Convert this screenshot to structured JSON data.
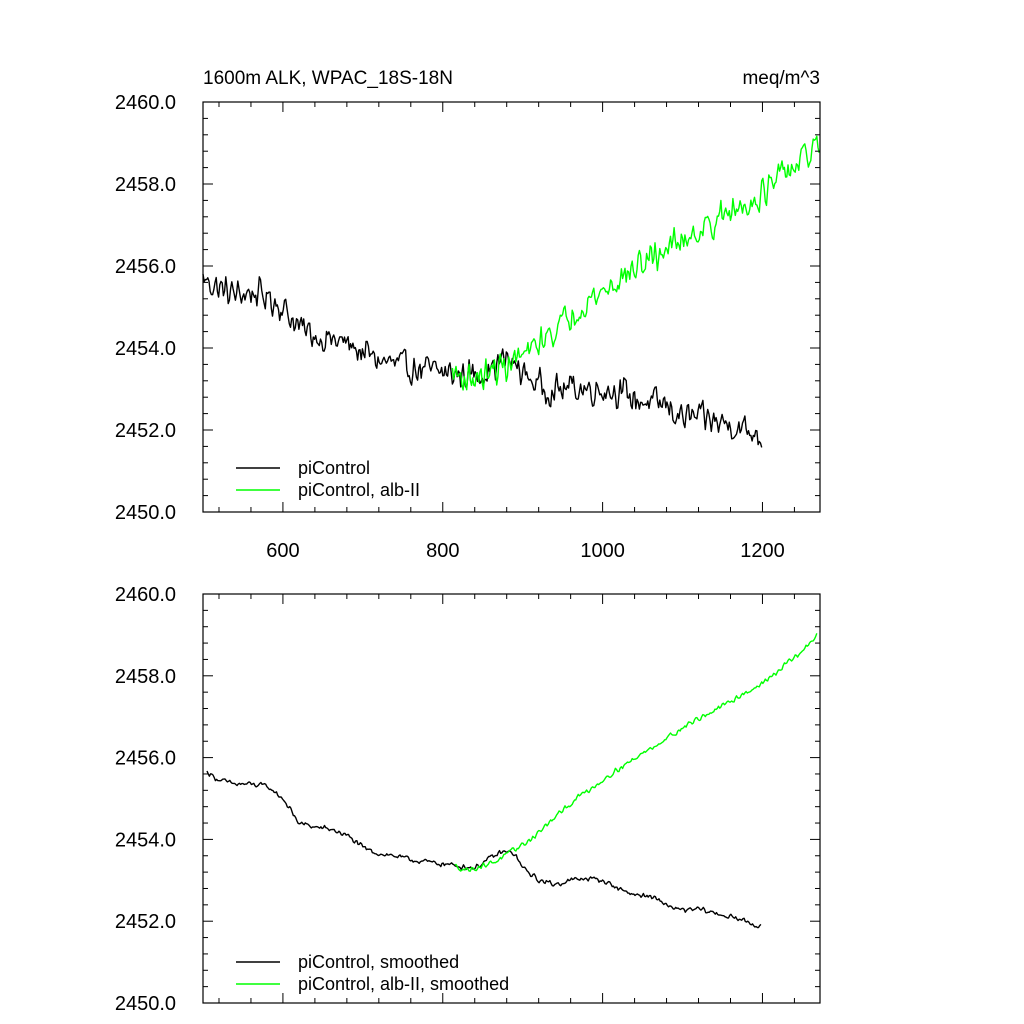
{
  "chart_data": [
    {
      "type": "line",
      "title": "1600m ALK, WPAC_18S-18N",
      "units": "meq/m^3",
      "xlim": [
        500,
        1272
      ],
      "ylim": [
        2450,
        2460
      ],
      "x_ticks": [
        600,
        800,
        1000,
        1200
      ],
      "x_tick_labels": [
        "600",
        "800",
        "1000",
        "1200"
      ],
      "y_ticks": [
        2450,
        2452,
        2454,
        2456,
        2458,
        2460
      ],
      "y_tick_labels": [
        "2450.0",
        "2452.0",
        "2454.0",
        "2456.0",
        "2458.0",
        "2460.0"
      ],
      "grid": false,
      "legend_position": "bottom-left",
      "series": [
        {
          "name": "piControl",
          "color": "#000000",
          "noise": 0.45,
          "x": [
            500,
            520,
            540,
            560,
            580,
            600,
            620,
            640,
            660,
            680,
            700,
            720,
            740,
            760,
            780,
            800,
            820,
            840,
            860,
            880,
            900,
            920,
            940,
            960,
            980,
            1000,
            1020,
            1040,
            1060,
            1080,
            1100,
            1120,
            1140,
            1160,
            1180,
            1200
          ],
          "y": [
            2455.7,
            2455.45,
            2455.3,
            2455.35,
            2455.25,
            2455.0,
            2454.5,
            2454.3,
            2454.2,
            2454.1,
            2453.9,
            2453.7,
            2453.6,
            2453.5,
            2453.45,
            2453.4,
            2453.35,
            2453.35,
            2453.5,
            2453.75,
            2453.4,
            2453.1,
            2452.95,
            2453.05,
            2453.0,
            2453.0,
            2452.95,
            2452.75,
            2452.65,
            2452.6,
            2452.3,
            2452.3,
            2452.2,
            2452.15,
            2452.0,
            2451.85
          ]
        },
        {
          "name": "piControl, alb-II",
          "color": "#00ff00",
          "noise": 0.45,
          "x": [
            812,
            830,
            850,
            870,
            890,
            910,
            930,
            950,
            970,
            990,
            1010,
            1030,
            1050,
            1070,
            1090,
            1110,
            1130,
            1150,
            1170,
            1190,
            1210,
            1230,
            1250,
            1272
          ],
          "y": [
            2453.4,
            2453.25,
            2453.3,
            2453.5,
            2453.7,
            2453.9,
            2454.3,
            2454.6,
            2455.0,
            2455.25,
            2455.5,
            2455.8,
            2456.05,
            2456.3,
            2456.55,
            2456.8,
            2456.95,
            2457.2,
            2457.4,
            2457.65,
            2457.9,
            2458.3,
            2458.55,
            2459.0
          ]
        }
      ]
    },
    {
      "type": "line",
      "xlim": [
        500,
        1272
      ],
      "ylim": [
        2450,
        2460
      ],
      "x_ticks": [
        600,
        800,
        1000,
        1200
      ],
      "y_ticks": [
        2450,
        2452,
        2454,
        2456,
        2458,
        2460
      ],
      "y_tick_labels": [
        "2450.0",
        "2452.0",
        "2454.0",
        "2456.0",
        "2458.0",
        "2460.0"
      ],
      "grid": false,
      "legend_position": "bottom-left",
      "series": [
        {
          "name": "piControl, smoothed",
          "color": "#000000",
          "noise": 0.08,
          "x": [
            505,
            520,
            540,
            560,
            580,
            600,
            620,
            640,
            660,
            680,
            700,
            720,
            740,
            760,
            780,
            800,
            820,
            840,
            860,
            875,
            890,
            900,
            920,
            940,
            960,
            980,
            1000,
            1020,
            1040,
            1060,
            1080,
            1100,
            1120,
            1140,
            1160,
            1180,
            1198
          ],
          "y": [
            2455.65,
            2455.45,
            2455.35,
            2455.35,
            2455.3,
            2455.0,
            2454.4,
            2454.3,
            2454.25,
            2454.1,
            2453.8,
            2453.65,
            2453.6,
            2453.5,
            2453.45,
            2453.4,
            2453.35,
            2453.3,
            2453.55,
            2453.7,
            2453.65,
            2453.3,
            2453.0,
            2452.9,
            2453.0,
            2453.05,
            2453.0,
            2452.8,
            2452.65,
            2452.6,
            2452.4,
            2452.25,
            2452.3,
            2452.2,
            2452.1,
            2452.0,
            2451.85
          ]
        },
        {
          "name": "piControl, alb-II, smoothed",
          "color": "#00ff00",
          "noise": 0.08,
          "x": [
            815,
            830,
            850,
            870,
            890,
            910,
            930,
            950,
            970,
            990,
            1010,
            1030,
            1050,
            1070,
            1090,
            1110,
            1130,
            1150,
            1170,
            1190,
            1210,
            1230,
            1250,
            1268
          ],
          "y": [
            2453.35,
            2453.25,
            2453.35,
            2453.5,
            2453.75,
            2454.0,
            2454.35,
            2454.7,
            2455.05,
            2455.3,
            2455.6,
            2455.85,
            2456.1,
            2456.35,
            2456.6,
            2456.85,
            2457.05,
            2457.25,
            2457.5,
            2457.7,
            2457.95,
            2458.3,
            2458.6,
            2459.0
          ]
        }
      ]
    }
  ]
}
